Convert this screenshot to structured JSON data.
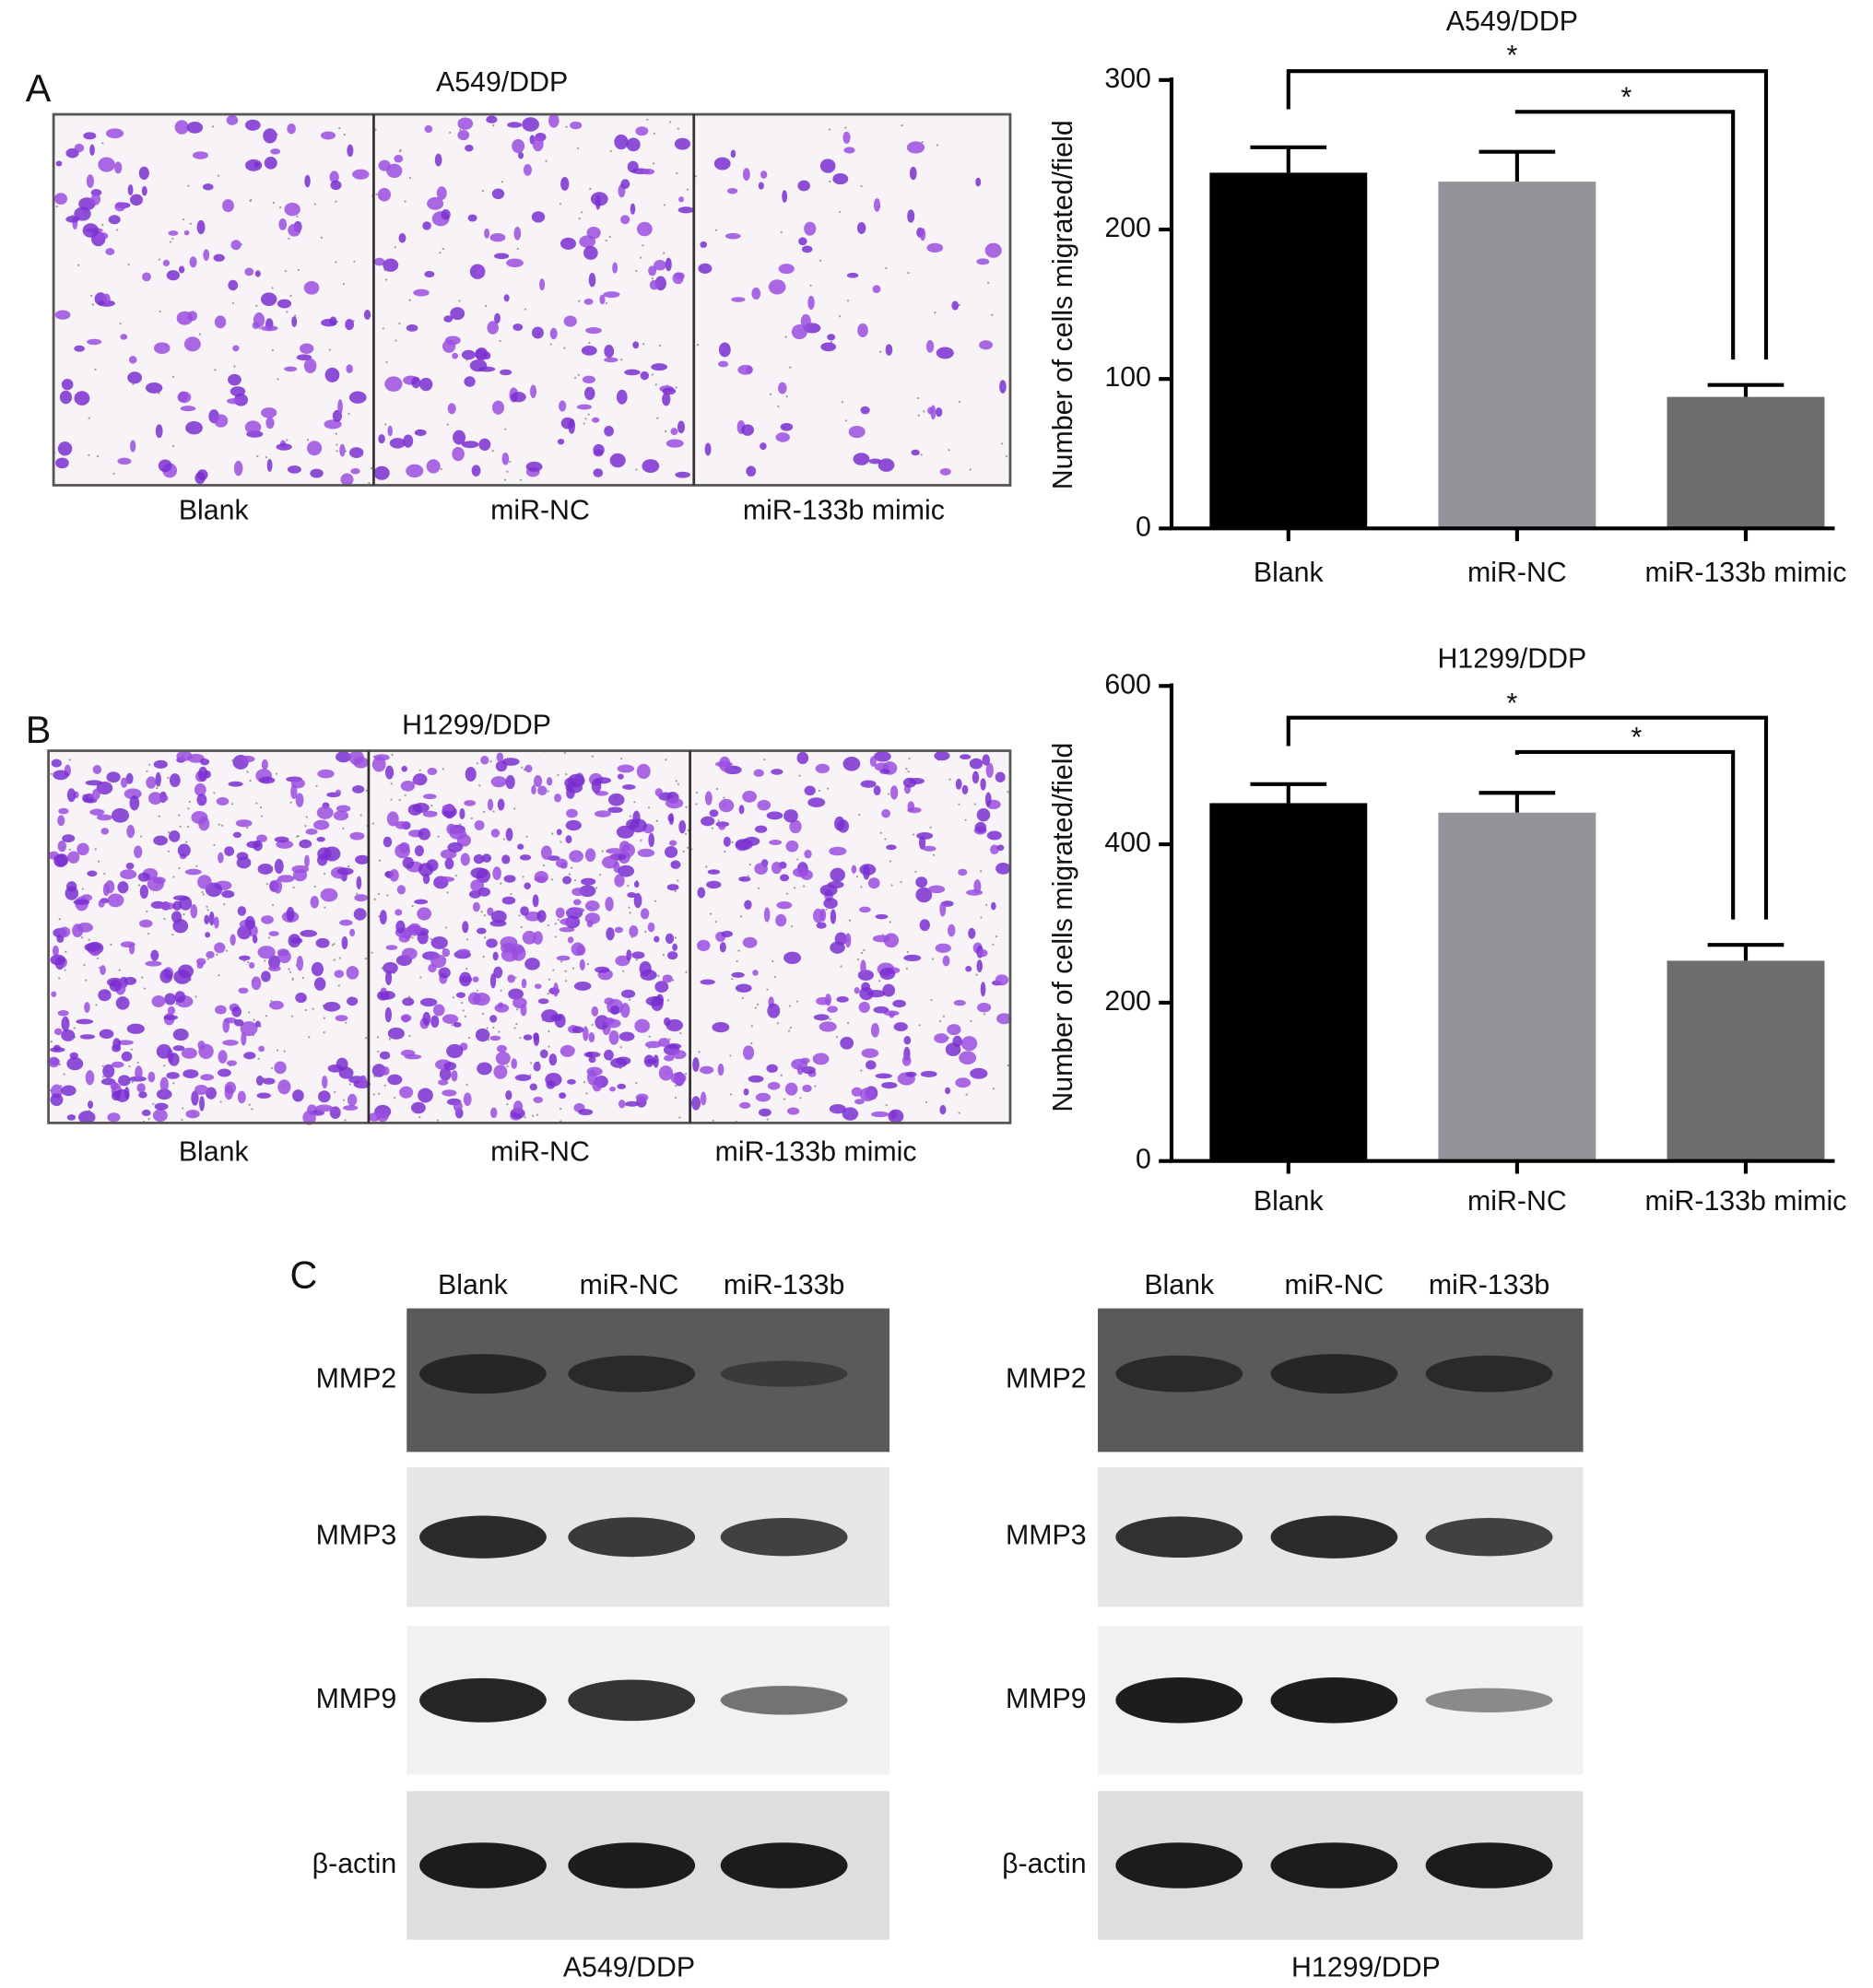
{
  "panel_labels": [
    "A",
    "B",
    "C"
  ],
  "micrographs": [
    {
      "title": "A549/DDP",
      "labels": [
        "Blank",
        "miR-NC",
        "miR-133b mimic"
      ]
    },
    {
      "title": "H1299/DDP",
      "labels": [
        "Blank",
        "miR-NC",
        "miR-133b mimic"
      ]
    }
  ],
  "chart_data": [
    {
      "type": "bar",
      "title": "A549/DDP",
      "y_label": "Number of cells migrated/field",
      "categories": [
        "Blank",
        "miR-NC",
        "miR-133b mimic"
      ],
      "values": [
        238,
        232,
        88
      ],
      "errors": [
        17,
        20,
        8
      ],
      "colors": [
        "#000000",
        "#939399",
        "#6e6e6e"
      ],
      "ylim": [
        0,
        300
      ],
      "yticks": [
        0,
        100,
        200,
        300
      ],
      "annotations": [
        "*",
        "*"
      ]
    },
    {
      "type": "bar",
      "title": "H1299/DDP",
      "y_label": "Number of cells migrated/field",
      "categories": [
        "Blank",
        "miR-NC",
        "miR-133b mimic"
      ],
      "values": [
        452,
        440,
        253
      ],
      "errors": [
        24,
        25,
        20
      ],
      "colors": [
        "#000000",
        "#939399",
        "#6e6e6e"
      ],
      "ylim": [
        0,
        600
      ],
      "yticks": [
        0,
        200,
        400,
        600
      ],
      "annotations": [
        "*",
        "*"
      ]
    }
  ],
  "blots": [
    {
      "lanes": [
        "Blank",
        "miR-NC",
        "miR-133b"
      ],
      "rows": [
        "MMP2",
        "MMP3",
        "MMP9",
        "β-actin"
      ],
      "caption": "A549/DDP"
    },
    {
      "lanes": [
        "Blank",
        "miR-NC",
        "miR-133b"
      ],
      "rows": [
        "MMP2",
        "MMP3",
        "MMP9",
        "β-actin"
      ],
      "caption": "H1299/DDP"
    }
  ]
}
